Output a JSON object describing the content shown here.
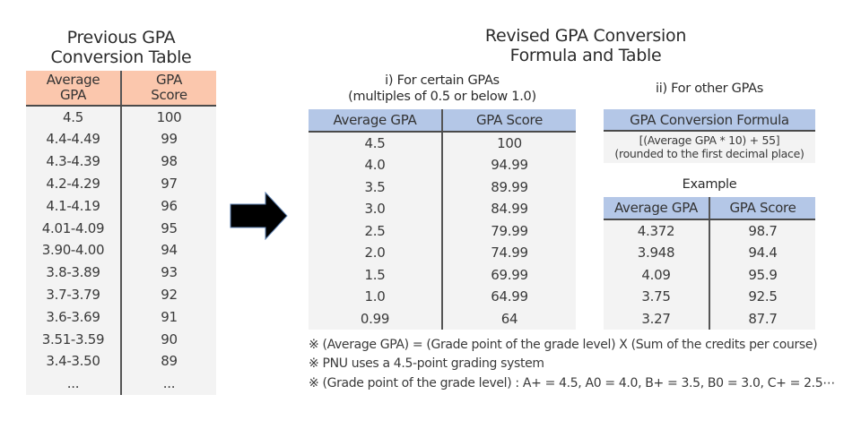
{
  "previous": {
    "title_line1": "Previous GPA",
    "title_line2": "Conversion Table",
    "headers": {
      "col1_line1": "Average",
      "col1_line2": "GPA",
      "col2_line1": "GPA",
      "col2_line2": "Score"
    },
    "rows": [
      [
        "4.5",
        "100"
      ],
      [
        "4.4-4.49",
        "99"
      ],
      [
        "4.3-4.39",
        "98"
      ],
      [
        "4.2-4.29",
        "97"
      ],
      [
        "4.1-4.19",
        "96"
      ],
      [
        "4.01-4.09",
        "95"
      ],
      [
        "3.90-4.00",
        "94"
      ],
      [
        "3.8-3.89",
        "93"
      ],
      [
        "3.7-3.79",
        "92"
      ],
      [
        "3.6-3.69",
        "91"
      ],
      [
        "3.51-3.59",
        "90"
      ],
      [
        "3.4-3.50",
        "89"
      ],
      [
        "...",
        "..."
      ]
    ],
    "header_color": "#fbc7ad"
  },
  "arrow": {
    "icon": "right-arrow-icon"
  },
  "revised": {
    "title_line1": "Revised GPA Conversion",
    "title_line2": "Formula and Table",
    "section_i": {
      "label_line1": "i) For certain GPAs",
      "label_line2": "(multiples of 0.5 or below 1.0)",
      "headers": [
        "Average GPA",
        "GPA Score"
      ],
      "rows": [
        [
          "4.5",
          "100"
        ],
        [
          "4.0",
          "94.99"
        ],
        [
          "3.5",
          "89.99"
        ],
        [
          "3.0",
          "84.99"
        ],
        [
          "2.5",
          "79.99"
        ],
        [
          "2.0",
          "74.99"
        ],
        [
          "1.5",
          "69.99"
        ],
        [
          "1.0",
          "64.99"
        ],
        [
          "0.99",
          "64"
        ]
      ]
    },
    "section_ii": {
      "label": "ii) For other GPAs",
      "formula_header": "GPA Conversion Formula",
      "formula_line1": "[(Average GPA * 10) + 55]",
      "formula_line2": "(rounded to the first decimal place)",
      "example_label": "Example",
      "example_headers": [
        "Average GPA",
        "GPA Score"
      ],
      "example_rows": [
        [
          "4.372",
          "98.7"
        ],
        [
          "3.948",
          "94.4"
        ],
        [
          "4.09",
          "95.9"
        ],
        [
          "3.75",
          "92.5"
        ],
        [
          "3.27",
          "87.7"
        ]
      ]
    },
    "header_color": "#b4c7e7"
  },
  "notes": [
    "※ (Average GPA) = (Grade point of the grade level) X (Sum of the credits per course)",
    "※ PNU uses a 4.5-point grading system",
    "※ (Grade point of the grade level) : A+ = 4.5, A0 = 4.0, B+ = 3.5, B0 = 3.0, C+ = 2.5⋯"
  ]
}
